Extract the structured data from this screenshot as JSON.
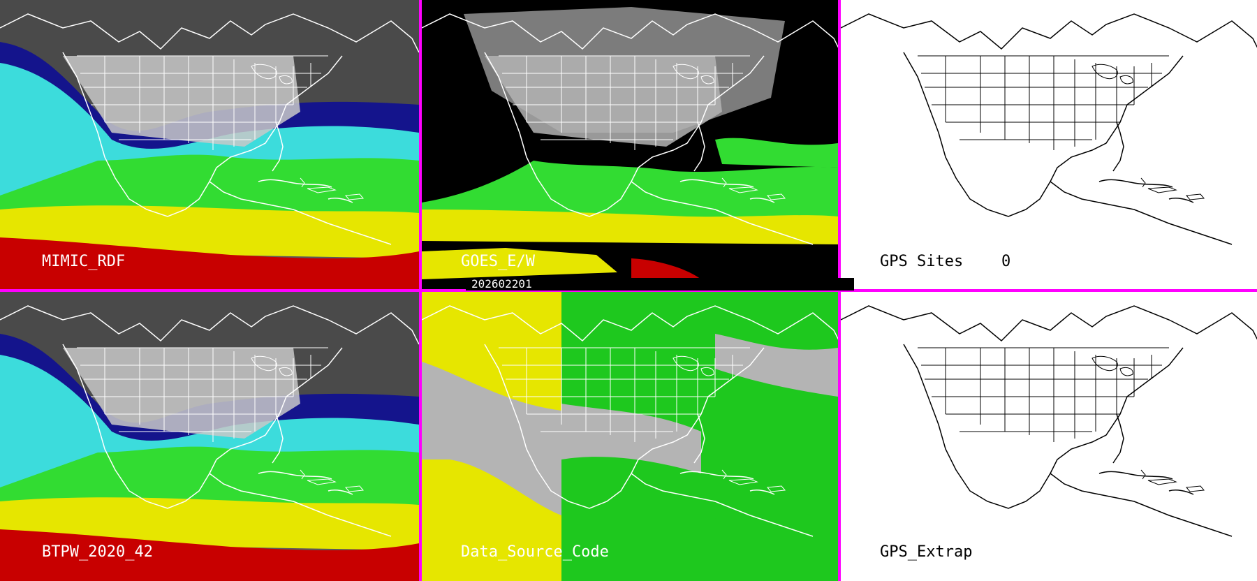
{
  "colors": {
    "divider": "#ff00ff",
    "gray_dry": "#4a4a4a",
    "navy": "#14148c",
    "blue": "#1e3cdc",
    "cyan": "#3cdcdc",
    "green": "#32dc32",
    "yellow": "#e6e600",
    "red": "#c80000",
    "source_gray": "#b4b4b4",
    "source_yellow": "#e6e600",
    "source_green": "#1ec81e"
  },
  "panels": [
    {
      "id": "mimic",
      "label": "MIMIC_RDF",
      "type": "tpw-field"
    },
    {
      "id": "goes",
      "label": "GOES_E/W",
      "type": "tpw-goes"
    },
    {
      "id": "gps-sites",
      "label": "GPS Sites",
      "value": "0",
      "type": "outline-only"
    },
    {
      "id": "btpw",
      "label": "BTPW_2020_42",
      "type": "tpw-field"
    },
    {
      "id": "datasource",
      "label": "Data_Source_Code",
      "type": "source-code"
    },
    {
      "id": "gps-extrap",
      "label": "GPS_Extrap",
      "type": "outline-only"
    }
  ],
  "timestamp": "202602201"
}
